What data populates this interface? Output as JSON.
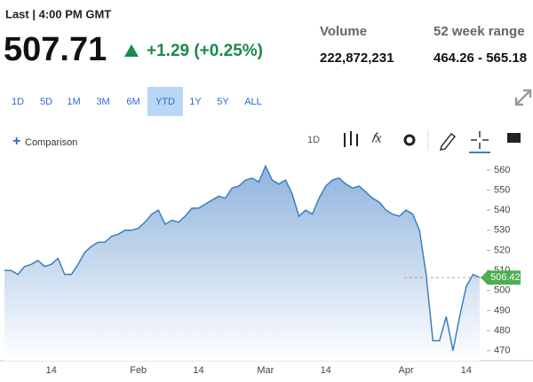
{
  "header": {
    "last": "Last | 4:00 PM GMT",
    "price": "507.71",
    "change": "+1.29 (+0.25%)",
    "volume_label": "Volume",
    "volume": "222,872,231",
    "range_label": "52 week range",
    "range": "464.26 - 565.18"
  },
  "range_buttons": [
    "1D",
    "5D",
    "1M",
    "3M",
    "6M",
    "YTD",
    "1Y",
    "5Y",
    "ALL"
  ],
  "active_range": "YTD",
  "toolbar": {
    "comparison": "Comparison",
    "interval": "1D"
  },
  "chart_data": {
    "type": "area",
    "categories": [
      null,
      null,
      null,
      null,
      null,
      null,
      null,
      "14",
      null,
      null,
      null,
      null,
      null,
      null,
      null,
      null,
      null,
      null,
      null,
      null,
      "Feb",
      null,
      null,
      null,
      null,
      null,
      null,
      null,
      null,
      "14",
      null,
      null,
      null,
      null,
      null,
      null,
      null,
      null,
      null,
      "Mar",
      null,
      null,
      null,
      null,
      null,
      null,
      null,
      null,
      "14",
      null,
      null,
      null,
      null,
      null,
      null,
      null,
      null,
      null,
      null,
      null,
      "Apr",
      null,
      null,
      null,
      null,
      null,
      null,
      null,
      null,
      "14",
      null,
      null
    ],
    "series": [
      {
        "color": "#3b7fc4",
        "values": [
          510,
          510,
          508,
          512,
          513,
          515,
          512,
          513,
          516,
          508,
          508,
          513,
          519,
          522,
          524,
          524,
          527,
          528,
          530,
          530,
          531,
          534,
          538,
          540,
          533,
          535,
          534,
          537,
          541,
          541,
          543,
          545,
          547,
          546,
          551,
          552,
          555,
          556,
          554,
          562,
          555,
          553,
          555,
          548,
          537,
          540,
          538,
          546,
          552,
          555,
          556,
          553,
          551,
          552,
          549,
          546,
          544,
          540,
          538,
          537,
          540,
          538,
          530,
          508,
          475,
          475,
          487,
          470,
          487,
          502,
          508,
          506.42
        ]
      }
    ],
    "ylim": [
      465,
      567
    ],
    "yticks": [
      470,
      480,
      490,
      500,
      510,
      520,
      530,
      540,
      550,
      560
    ]
  }
}
